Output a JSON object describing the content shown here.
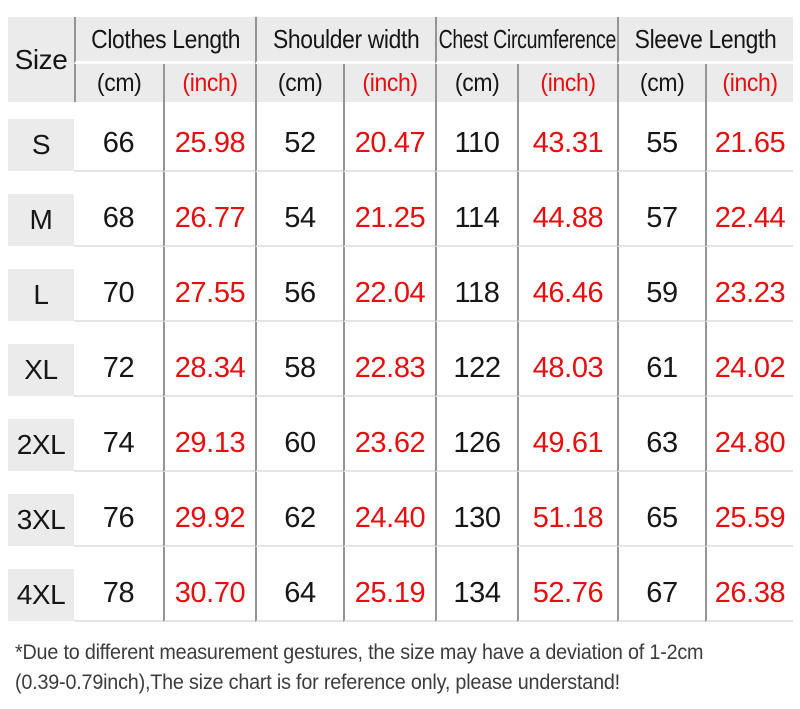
{
  "colors": {
    "header_bg": "#ebebeb",
    "grid_line": "#949494",
    "row_line": "#e5e5e5",
    "text_dark": "#161616",
    "accent_red": "#e60e0e",
    "footnote_text": "#3c3c3c"
  },
  "table": {
    "size_header": "Size",
    "groups": [
      {
        "label": "Clothes Length"
      },
      {
        "label": "Shoulder width"
      },
      {
        "label": "Chest Circumference"
      },
      {
        "label": "Sleeve Length"
      }
    ],
    "unit_cm": "(cm)",
    "unit_inch": "(inch)",
    "rows": [
      {
        "size": "S",
        "values": [
          "66",
          "25.98",
          "52",
          "20.47",
          "110",
          "43.31",
          "55",
          "21.65"
        ]
      },
      {
        "size": "M",
        "values": [
          "68",
          "26.77",
          "54",
          "21.25",
          "114",
          "44.88",
          "57",
          "22.44"
        ]
      },
      {
        "size": "L",
        "values": [
          "70",
          "27.55",
          "56",
          "22.04",
          "118",
          "46.46",
          "59",
          "23.23"
        ]
      },
      {
        "size": "XL",
        "values": [
          "72",
          "28.34",
          "58",
          "22.83",
          "122",
          "48.03",
          "61",
          "24.02"
        ]
      },
      {
        "size": "2XL",
        "values": [
          "74",
          "29.13",
          "60",
          "23.62",
          "126",
          "49.61",
          "63",
          "24.80"
        ]
      },
      {
        "size": "3XL",
        "values": [
          "76",
          "29.92",
          "62",
          "24.40",
          "130",
          "51.18",
          "65",
          "25.59"
        ]
      },
      {
        "size": "4XL",
        "values": [
          "78",
          "30.70",
          "64",
          "25.19",
          "134",
          "52.76",
          "67",
          "26.38"
        ]
      }
    ]
  },
  "footnote": {
    "line1": "*Due to different measurement gestures, the size may have a deviation of 1-2cm",
    "line2": "(0.39-0.79inch),The size chart is for reference only, please understand!"
  },
  "chart_data": {
    "type": "table",
    "title": "Garment size chart",
    "columns": [
      "Size",
      "Clothes Length (cm)",
      "Clothes Length (inch)",
      "Shoulder width (cm)",
      "Shoulder width (inch)",
      "Chest Circumference (cm)",
      "Chest Circumference (inch)",
      "Sleeve Length (cm)",
      "Sleeve Length (inch)"
    ],
    "rows": [
      [
        "S",
        66,
        25.98,
        52,
        20.47,
        110,
        43.31,
        55,
        21.65
      ],
      [
        "M",
        68,
        26.77,
        54,
        21.25,
        114,
        44.88,
        57,
        22.44
      ],
      [
        "L",
        70,
        27.55,
        56,
        22.04,
        118,
        46.46,
        59,
        23.23
      ],
      [
        "XL",
        72,
        28.34,
        58,
        22.83,
        122,
        48.03,
        61,
        24.02
      ],
      [
        "2XL",
        74,
        29.13,
        60,
        23.62,
        126,
        49.61,
        63,
        24.8
      ],
      [
        "3XL",
        76,
        29.92,
        62,
        24.4,
        130,
        51.18,
        65,
        25.59
      ],
      [
        "4XL",
        78,
        30.7,
        64,
        25.19,
        134,
        52.76,
        67,
        26.38
      ]
    ],
    "layout": {
      "inch_columns_color": "#e60e0e",
      "grid": "vertical rules + faint row separators",
      "header_background": "#ebebeb"
    }
  }
}
